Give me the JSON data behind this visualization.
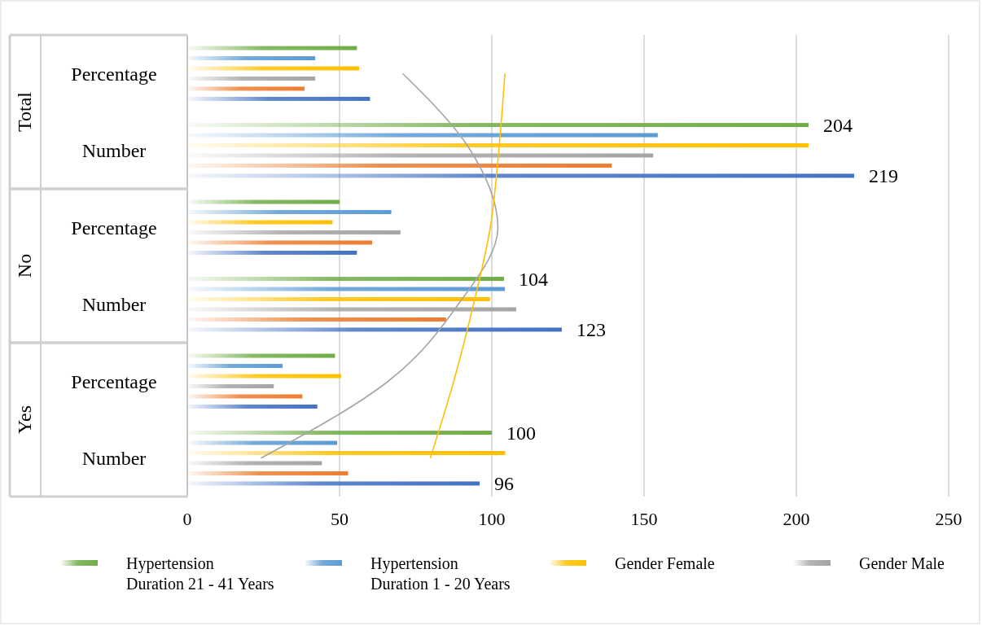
{
  "chart_data": {
    "type": "bar",
    "orientation": "horizontal",
    "categories": [
      "Percentage",
      "Number",
      "Percentage",
      "Number",
      "Percentage",
      "Number"
    ],
    "annotations": [
      "Total",
      "No",
      "Yes"
    ],
    "series": [
      {
        "name": "Hypertension Duration 21 - 41 Years",
        "color": "#70ad47",
        "values": [
          55.7,
          204,
          50,
          104,
          48.5,
          100
        ],
        "value_labels": [
          null,
          "204",
          null,
          "104",
          null,
          "100"
        ]
      },
      {
        "name": "Hypertension Duration 1 - 20 Years",
        "color": "#5b9bd5",
        "values": [
          42,
          154.5,
          67,
          104.3,
          31.3,
          49.2
        ]
      },
      {
        "name": "Gender Female",
        "color": "#ffc000",
        "values": [
          56.4,
          204,
          47.7,
          99.4,
          50.5,
          104.4
        ]
      },
      {
        "name": "Gender Male",
        "color": "#a5a5a5",
        "values": [
          42,
          153,
          70,
          108,
          28.4,
          44.2
        ]
      },
      {
        "color": "#ed7d31",
        "values": [
          38.5,
          139.4,
          60.7,
          85,
          37.8,
          52.8
        ]
      },
      {
        "color": "#4472c4",
        "values": [
          60,
          219,
          55.7,
          123,
          42.7,
          96
        ],
        "value_labels": [
          null,
          "219",
          null,
          "123",
          null,
          "96"
        ]
      },
      {
        "type": "line",
        "color": "#a5a5a5",
        "values": [
          70.7,
          93,
          102,
          89,
          66,
          24.2
        ]
      },
      {
        "type": "line",
        "color": "#ffc000",
        "values": [
          104.3,
          102.3,
          99.5,
          94,
          87.5,
          79.8
        ]
      }
    ],
    "xlim": [
      0,
      250
    ],
    "xticks": [
      0,
      50,
      100,
      150,
      200,
      250
    ],
    "grid": "x",
    "legend": "bottom"
  }
}
